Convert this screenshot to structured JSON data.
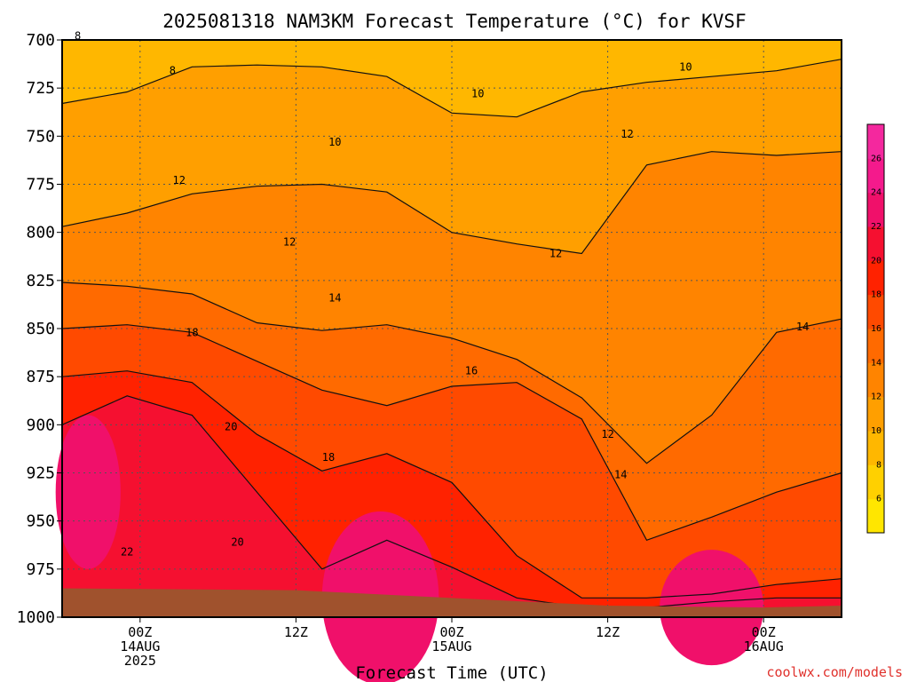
{
  "chart_data": {
    "type": "heatmap",
    "title": "2025081318 NAM3KM Forecast Temperature (°C) for KVSF",
    "xlabel": "Forecast Time (UTC)",
    "ylabel": "",
    "y_axis": {
      "unit": "hPa",
      "reversed": true,
      "range": [
        700,
        1000
      ],
      "ticks": [
        700,
        725,
        750,
        775,
        800,
        825,
        850,
        875,
        900,
        925,
        950,
        975,
        1000
      ]
    },
    "x_axis": {
      "range_hours": [
        -6,
        54
      ],
      "ticks": [
        {
          "hour": 0,
          "lines": [
            "00Z",
            "14AUG",
            "2025"
          ]
        },
        {
          "hour": 12,
          "lines": [
            "12Z"
          ]
        },
        {
          "hour": 24,
          "lines": [
            "00Z",
            "15AUG"
          ]
        },
        {
          "hour": 36,
          "lines": [
            "12Z"
          ]
        },
        {
          "hour": 48,
          "lines": [
            "00Z",
            "16AUG"
          ]
        }
      ]
    },
    "grid": true,
    "colorbar": {
      "placement": "right",
      "levels": [
        4,
        6,
        8,
        10,
        12,
        14,
        16,
        18,
        20,
        22,
        24,
        26,
        28
      ],
      "tick_labels": [
        6,
        8,
        10,
        12,
        14,
        16,
        18,
        20,
        22,
        24,
        26
      ],
      "colors": [
        "#ffe600",
        "#ffd000",
        "#ffb700",
        "#ff9f00",
        "#ff8400",
        "#ff6a00",
        "#ff4a00",
        "#ff2200",
        "#f51030",
        "#f0106a",
        "#f41a8c",
        "#f4289e"
      ]
    },
    "terrain_color": "#a0522d",
    "isotherms": [
      {
        "value": 10,
        "p": [
          733,
          727,
          714,
          713,
          714,
          719,
          738,
          740,
          727,
          722,
          719,
          716,
          710
        ]
      },
      {
        "value": 12,
        "p": [
          797,
          790,
          780,
          776,
          775,
          779,
          800,
          806,
          811,
          765,
          758,
          760,
          758
        ]
      },
      {
        "value": 14,
        "p": [
          826,
          828,
          832,
          847,
          851,
          848,
          855,
          866,
          886,
          920,
          895,
          852,
          845
        ]
      },
      {
        "value": 16,
        "p": [
          850,
          848,
          852,
          867,
          882,
          890,
          880,
          878,
          897,
          960,
          948,
          935,
          925
        ]
      },
      {
        "value": 18,
        "p": [
          875,
          872,
          878,
          905,
          924,
          915,
          930,
          968,
          990,
          990,
          988,
          983,
          980
        ]
      },
      {
        "value": 20,
        "p": [
          900,
          885,
          895,
          935,
          975,
          960,
          974,
          990,
          995,
          995,
          992,
          990,
          990
        ]
      }
    ],
    "contour_labels": [
      {
        "text": "8",
        "hour": 2.5,
        "p": 716
      },
      {
        "text": "8",
        "hour": -4.8,
        "p": 698
      },
      {
        "text": "10",
        "hour": 15,
        "p": 753
      },
      {
        "text": "10",
        "hour": 26,
        "p": 728
      },
      {
        "text": "10",
        "hour": 42,
        "p": 714
      },
      {
        "text": "12",
        "hour": 3,
        "p": 773
      },
      {
        "text": "12",
        "hour": 32,
        "p": 811
      },
      {
        "text": "12",
        "hour": 37.5,
        "p": 749
      },
      {
        "text": "12",
        "hour": 11.5,
        "p": 805
      },
      {
        "text": "12",
        "hour": 36,
        "p": 905
      },
      {
        "text": "14",
        "hour": 15,
        "p": 834
      },
      {
        "text": "14",
        "hour": 51,
        "p": 849
      },
      {
        "text": "14",
        "hour": 37,
        "p": 926
      },
      {
        "text": "16",
        "hour": 25.5,
        "p": 872
      },
      {
        "text": "18",
        "hour": 4,
        "p": 852
      },
      {
        "text": "18",
        "hour": 14.5,
        "p": 917
      },
      {
        "text": "20",
        "hour": 7,
        "p": 901
      },
      {
        "text": "20",
        "hour": 7.5,
        "p": 961
      },
      {
        "text": "22",
        "hour": -1,
        "p": 966
      }
    ]
  },
  "credit": "coolwx.com/models"
}
